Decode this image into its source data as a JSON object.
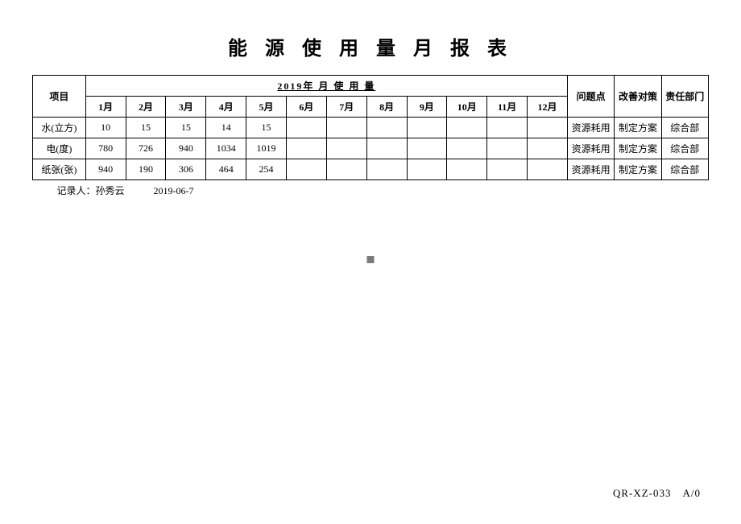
{
  "title": "能 源 使 用 量 月 报 表",
  "table": {
    "header": {
      "item": "项目",
      "year_usage": "2019年 月 使 用 量",
      "months": [
        "1月",
        "2月",
        "3月",
        "4月",
        "5月",
        "6月",
        "7月",
        "8月",
        "9月",
        "10月",
        "11月",
        "12月"
      ],
      "issue": "问题点",
      "action": "改善对策",
      "dept": "责任部门"
    },
    "rows": [
      {
        "item": "水(立方)",
        "values": [
          "10",
          "15",
          "15",
          "14",
          "15",
          "",
          "",
          "",
          "",
          "",
          "",
          ""
        ],
        "issue": "资源耗用",
        "action": "制定方案",
        "dept": "综合部"
      },
      {
        "item": "电(度)",
        "values": [
          "780",
          "726",
          "940",
          "1034",
          "1019",
          "",
          "",
          "",
          "",
          "",
          "",
          ""
        ],
        "issue": "资源耗用",
        "action": "制定方案",
        "dept": "综合部"
      },
      {
        "item": "纸张(张)",
        "values": [
          "940",
          "190",
          "306",
          "464",
          "254",
          "",
          "",
          "",
          "",
          "",
          "",
          ""
        ],
        "issue": "资源耗用",
        "action": "制定方案",
        "dept": "综合部"
      }
    ],
    "footer": "记录人：孙秀云　　　2019-06-7"
  },
  "doc_code": "QR-XZ-033　A/0",
  "style": {
    "background_color": "#ffffff",
    "text_color": "#000000",
    "border_color": "#000000",
    "title_fontsize": 24,
    "cell_fontsize": 12,
    "marker_color": "#7a7a7a"
  }
}
